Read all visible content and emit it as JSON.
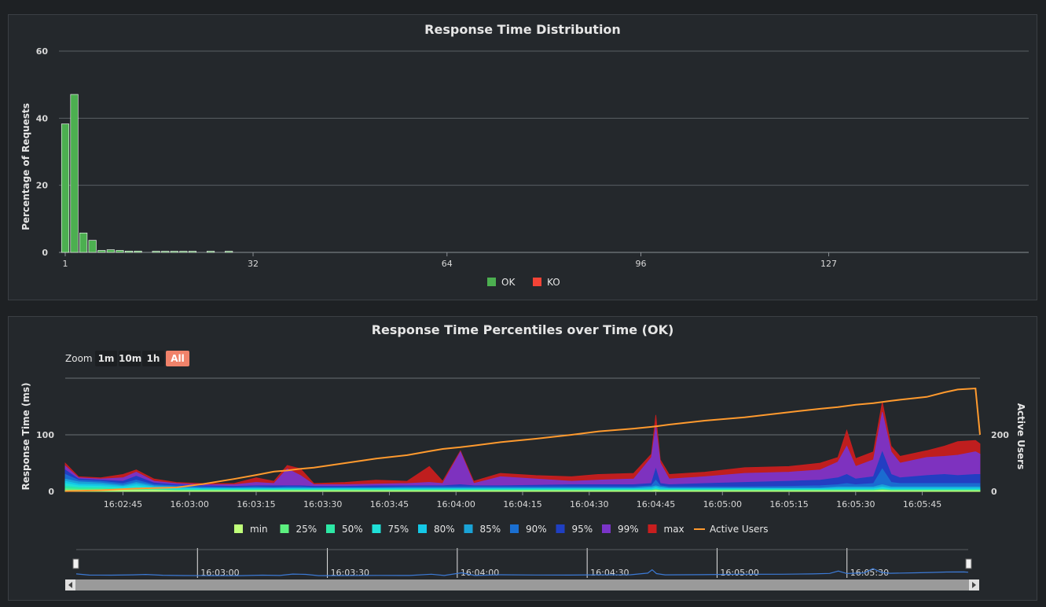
{
  "colors": {
    "ok": "#4caf50",
    "ko": "#f44336",
    "min": "#c0ff7a",
    "p25": "#5cf07f",
    "p50": "#2de8a5",
    "p75": "#1fe0d8",
    "p80": "#14c8e6",
    "p85": "#1aa3d6",
    "p90": "#1a6fd1",
    "p95": "#1f3fc2",
    "p99": "#7a34c8",
    "max": "#c81e1e",
    "users": "#ff9a2e"
  },
  "chart_data": [
    {
      "type": "bar",
      "title": "Response Time Distribution",
      "ylabel": "Percentage of Requests",
      "xlabel": "",
      "ylim": [
        0,
        60
      ],
      "xlim": [
        1,
        160
      ],
      "yticks": [
        "0",
        "20",
        "40",
        "60"
      ],
      "xticks": [
        "1",
        "32",
        "64",
        "96",
        "127"
      ],
      "xtick_values": [
        1,
        32,
        64,
        96,
        127
      ],
      "legend": [
        {
          "name": "OK",
          "color": "#4caf50"
        },
        {
          "name": "KO",
          "color": "#f44336"
        }
      ],
      "legend_position": "bottom",
      "bars": [
        {
          "x": 1,
          "v": 38.3
        },
        {
          "x": 2.5,
          "v": 47.1
        },
        {
          "x": 4,
          "v": 5.8
        },
        {
          "x": 5.5,
          "v": 3.6
        },
        {
          "x": 7,
          "v": 0.6
        },
        {
          "x": 8.5,
          "v": 0.8
        },
        {
          "x": 10,
          "v": 0.6
        },
        {
          "x": 11.5,
          "v": 0.4
        },
        {
          "x": 13,
          "v": 0.4
        },
        {
          "x": 16,
          "v": 0.3
        },
        {
          "x": 17.5,
          "v": 0.3
        },
        {
          "x": 19,
          "v": 0.3
        },
        {
          "x": 20.5,
          "v": 0.3
        },
        {
          "x": 22,
          "v": 0.2
        },
        {
          "x": 25,
          "v": 0.2
        },
        {
          "x": 28,
          "v": 0.2
        }
      ]
    },
    {
      "type": "area",
      "title": "Response Time Percentiles over Time (OK)",
      "ylabel": "Response Time (ms)",
      "y2label": "Active Users",
      "yticks": [
        "0",
        "100"
      ],
      "y2ticks": [
        "0",
        "200"
      ],
      "ylim": [
        0,
        200
      ],
      "y2lim": [
        0,
        400
      ],
      "xlim_seconds": [
        152,
        358
      ],
      "xtick_labels": [
        "16:02:45",
        "16:03:00",
        "16:03:15",
        "16:03:30",
        "16:03:45",
        "16:04:00",
        "16:04:15",
        "16:04:30",
        "16:04:45",
        "16:05:00",
        "16:05:15",
        "16:05:30",
        "16:05:45"
      ],
      "xtick_seconds": [
        165,
        180,
        195,
        210,
        225,
        240,
        255,
        270,
        285,
        300,
        315,
        330,
        345
      ],
      "legend_position": "bottom",
      "series_order": [
        "min",
        "25%",
        "50%",
        "75%",
        "80%",
        "85%",
        "90%",
        "95%",
        "99%",
        "max",
        "Active Users"
      ],
      "keypoints": [
        {
          "t": 152,
          "min": 2,
          "p25": 5,
          "p50": 9,
          "p75": 14,
          "p80": 18,
          "p85": 22,
          "p90": 30,
          "p95": 38,
          "p99": 45,
          "max": 50,
          "users": 1
        },
        {
          "t": 155,
          "min": 2,
          "p25": 4,
          "p50": 7,
          "p75": 10,
          "p80": 13,
          "p85": 17,
          "p90": 20,
          "p95": 22,
          "p99": 24,
          "max": 26,
          "users": 2
        },
        {
          "t": 160,
          "min": 2,
          "p25": 4,
          "p50": 6,
          "p75": 9,
          "p80": 12,
          "p85": 15,
          "p90": 18,
          "p95": 20,
          "p99": 22,
          "max": 24,
          "users": 4
        },
        {
          "t": 165,
          "min": 2,
          "p25": 3,
          "p50": 5,
          "p75": 7,
          "p80": 9,
          "p85": 11,
          "p90": 14,
          "p95": 18,
          "p99": 24,
          "max": 30,
          "users": 8
        },
        {
          "t": 168,
          "min": 2,
          "p25": 3,
          "p50": 6,
          "p75": 10,
          "p80": 13,
          "p85": 16,
          "p90": 20,
          "p95": 27,
          "p99": 34,
          "max": 38,
          "users": 10
        },
        {
          "t": 172,
          "min": 2,
          "p25": 3,
          "p50": 4,
          "p75": 6,
          "p80": 8,
          "p85": 10,
          "p90": 12,
          "p95": 15,
          "p99": 18,
          "max": 22,
          "users": 12
        },
        {
          "t": 177,
          "min": 1,
          "p25": 2,
          "p50": 3,
          "p75": 5,
          "p80": 6,
          "p85": 8,
          "p90": 10,
          "p95": 12,
          "p99": 14,
          "max": 16,
          "users": 14
        },
        {
          "t": 183,
          "min": 1,
          "p25": 2,
          "p50": 3,
          "p75": 4,
          "p80": 5,
          "p85": 6,
          "p90": 8,
          "p95": 10,
          "p99": 12,
          "max": 14,
          "users": 26
        },
        {
          "t": 190,
          "min": 1,
          "p25": 2,
          "p50": 3,
          "p75": 4,
          "p80": 5,
          "p85": 6,
          "p90": 7,
          "p95": 9,
          "p99": 12,
          "max": 14,
          "users": 44
        },
        {
          "t": 195,
          "min": 1,
          "p25": 2,
          "p50": 3,
          "p75": 4,
          "p80": 5,
          "p85": 6,
          "p90": 8,
          "p95": 10,
          "p99": 16,
          "max": 24,
          "users": 58
        },
        {
          "t": 199,
          "min": 1,
          "p25": 2,
          "p50": 3,
          "p75": 4,
          "p80": 5,
          "p85": 6,
          "p90": 7,
          "p95": 10,
          "p99": 14,
          "max": 18,
          "users": 70
        },
        {
          "t": 202,
          "min": 1,
          "p25": 2,
          "p50": 3,
          "p75": 4,
          "p80": 5,
          "p85": 6,
          "p90": 8,
          "p95": 10,
          "p99": 40,
          "max": 46,
          "users": 74
        },
        {
          "t": 205,
          "min": 1,
          "p25": 2,
          "p50": 3,
          "p75": 4,
          "p80": 5,
          "p85": 6,
          "p90": 8,
          "p95": 10,
          "p99": 28,
          "max": 40,
          "users": 80
        },
        {
          "t": 208,
          "min": 1,
          "p25": 2,
          "p50": 3,
          "p75": 4,
          "p80": 5,
          "p85": 6,
          "p90": 7,
          "p95": 9,
          "p99": 12,
          "max": 14,
          "users": 84
        },
        {
          "t": 215,
          "min": 1,
          "p25": 2,
          "p50": 3,
          "p75": 4,
          "p80": 5,
          "p85": 6,
          "p90": 7,
          "p95": 9,
          "p99": 12,
          "max": 16,
          "users": 100
        },
        {
          "t": 222,
          "min": 1,
          "p25": 2,
          "p50": 3,
          "p75": 4,
          "p80": 5,
          "p85": 6,
          "p90": 7,
          "p95": 10,
          "p99": 13,
          "max": 20,
          "users": 116
        },
        {
          "t": 229,
          "min": 1,
          "p25": 2,
          "p50": 3,
          "p75": 4,
          "p80": 5,
          "p85": 6,
          "p90": 8,
          "p95": 10,
          "p99": 14,
          "max": 18,
          "users": 128
        },
        {
          "t": 234,
          "min": 1,
          "p25": 2,
          "p50": 3,
          "p75": 4,
          "p80": 5,
          "p85": 6,
          "p90": 8,
          "p95": 10,
          "p99": 16,
          "max": 44,
          "users": 142
        },
        {
          "t": 237,
          "min": 1,
          "p25": 2,
          "p50": 3,
          "p75": 4,
          "p80": 5,
          "p85": 6,
          "p90": 8,
          "p95": 10,
          "p99": 14,
          "max": 18,
          "users": 150
        },
        {
          "t": 241,
          "min": 1,
          "p25": 2,
          "p50": 3,
          "p75": 4,
          "p80": 5,
          "p85": 6,
          "p90": 8,
          "p95": 12,
          "p99": 70,
          "max": 72,
          "users": 156
        },
        {
          "t": 244,
          "min": 1,
          "p25": 2,
          "p50": 3,
          "p75": 4,
          "p80": 5,
          "p85": 6,
          "p90": 8,
          "p95": 10,
          "p99": 14,
          "max": 18,
          "users": 162
        },
        {
          "t": 250,
          "min": 1,
          "p25": 2,
          "p50": 3,
          "p75": 4,
          "p80": 5,
          "p85": 6,
          "p90": 8,
          "p95": 10,
          "p99": 26,
          "max": 32,
          "users": 174
        },
        {
          "t": 258,
          "min": 1,
          "p25": 2,
          "p50": 3,
          "p75": 4,
          "p80": 5,
          "p85": 6,
          "p90": 8,
          "p95": 11,
          "p99": 22,
          "max": 28,
          "users": 186
        },
        {
          "t": 266,
          "min": 1,
          "p25": 2,
          "p50": 3,
          "p75": 4,
          "p80": 5,
          "p85": 6,
          "p90": 8,
          "p95": 12,
          "p99": 18,
          "max": 26,
          "users": 200
        },
        {
          "t": 272,
          "min": 1,
          "p25": 2,
          "p50": 3,
          "p75": 4,
          "p80": 5,
          "p85": 6,
          "p90": 8,
          "p95": 12,
          "p99": 20,
          "max": 30,
          "users": 212
        },
        {
          "t": 280,
          "min": 1,
          "p25": 2,
          "p50": 3,
          "p75": 4,
          "p80": 5,
          "p85": 6,
          "p90": 8,
          "p95": 12,
          "p99": 22,
          "max": 32,
          "users": 222
        },
        {
          "t": 284,
          "min": 1,
          "p25": 2,
          "p50": 3,
          "p75": 4,
          "p80": 6,
          "p85": 8,
          "p90": 10,
          "p95": 14,
          "p99": 60,
          "max": 66,
          "users": 228
        },
        {
          "t": 285,
          "min": 2,
          "p25": 3,
          "p50": 4,
          "p75": 6,
          "p80": 8,
          "p85": 10,
          "p90": 20,
          "p95": 40,
          "p99": 115,
          "max": 135,
          "users": 230
        },
        {
          "t": 286,
          "min": 1,
          "p25": 2,
          "p50": 3,
          "p75": 4,
          "p80": 6,
          "p85": 8,
          "p90": 10,
          "p95": 14,
          "p99": 50,
          "max": 56,
          "users": 232
        },
        {
          "t": 288,
          "min": 1,
          "p25": 2,
          "p50": 3,
          "p75": 4,
          "p80": 5,
          "p85": 6,
          "p90": 8,
          "p95": 12,
          "p99": 22,
          "max": 30,
          "users": 236
        },
        {
          "t": 296,
          "min": 1,
          "p25": 2,
          "p50": 3,
          "p75": 4,
          "p80": 5,
          "p85": 6,
          "p90": 8,
          "p95": 14,
          "p99": 26,
          "max": 34,
          "users": 250
        },
        {
          "t": 305,
          "min": 1,
          "p25": 2,
          "p50": 3,
          "p75": 4,
          "p80": 5,
          "p85": 6,
          "p90": 8,
          "p95": 16,
          "p99": 32,
          "max": 42,
          "users": 262
        },
        {
          "t": 315,
          "min": 1,
          "p25": 2,
          "p50": 3,
          "p75": 4,
          "p80": 5,
          "p85": 6,
          "p90": 9,
          "p95": 18,
          "p99": 34,
          "max": 44,
          "users": 280
        },
        {
          "t": 322,
          "min": 1,
          "p25": 2,
          "p50": 3,
          "p75": 4,
          "p80": 5,
          "p85": 6,
          "p90": 10,
          "p95": 20,
          "p99": 38,
          "max": 50,
          "users": 292
        },
        {
          "t": 326,
          "min": 1,
          "p25": 2,
          "p50": 3,
          "p75": 4,
          "p80": 6,
          "p85": 8,
          "p90": 12,
          "p95": 24,
          "p99": 52,
          "max": 60,
          "users": 298
        },
        {
          "t": 328,
          "min": 1,
          "p25": 2,
          "p50": 3,
          "p75": 4,
          "p80": 6,
          "p85": 8,
          "p90": 14,
          "p95": 30,
          "p99": 80,
          "max": 108,
          "users": 302
        },
        {
          "t": 330,
          "min": 1,
          "p25": 2,
          "p50": 3,
          "p75": 4,
          "p80": 6,
          "p85": 8,
          "p90": 12,
          "p95": 22,
          "p99": 44,
          "max": 58,
          "users": 306
        },
        {
          "t": 334,
          "min": 1,
          "p25": 2,
          "p50": 3,
          "p75": 4,
          "p80": 6,
          "p85": 8,
          "p90": 14,
          "p95": 26,
          "p99": 56,
          "max": 70,
          "users": 312
        },
        {
          "t": 336,
          "min": 2,
          "p25": 3,
          "p50": 4,
          "p75": 6,
          "p80": 8,
          "p85": 12,
          "p90": 40,
          "p95": 70,
          "p99": 140,
          "max": 158,
          "users": 316
        },
        {
          "t": 338,
          "min": 1,
          "p25": 2,
          "p50": 3,
          "p75": 4,
          "p80": 6,
          "p85": 8,
          "p90": 16,
          "p95": 30,
          "p99": 70,
          "max": 80,
          "users": 320
        },
        {
          "t": 340,
          "min": 1,
          "p25": 2,
          "p50": 3,
          "p75": 4,
          "p80": 6,
          "p85": 8,
          "p90": 14,
          "p95": 24,
          "p99": 50,
          "max": 62,
          "users": 324
        },
        {
          "t": 346,
          "min": 1,
          "p25": 2,
          "p50": 3,
          "p75": 4,
          "p80": 6,
          "p85": 8,
          "p90": 14,
          "p95": 28,
          "p99": 60,
          "max": 72,
          "users": 334
        },
        {
          "t": 350,
          "min": 1,
          "p25": 2,
          "p50": 3,
          "p75": 4,
          "p80": 6,
          "p85": 8,
          "p90": 14,
          "p95": 30,
          "p99": 62,
          "max": 80,
          "users": 350
        },
        {
          "t": 353,
          "min": 1,
          "p25": 2,
          "p50": 3,
          "p75": 4,
          "p80": 6,
          "p85": 8,
          "p90": 14,
          "p95": 28,
          "p99": 64,
          "max": 88,
          "users": 360
        },
        {
          "t": 357,
          "min": 1,
          "p25": 2,
          "p50": 3,
          "p75": 4,
          "p80": 6,
          "p85": 8,
          "p90": 14,
          "p95": 30,
          "p99": 70,
          "max": 90,
          "users": 364
        },
        {
          "t": 358,
          "min": 1,
          "p25": 2,
          "p50": 3,
          "p75": 4,
          "p80": 6,
          "p85": 8,
          "p90": 14,
          "p95": 30,
          "p99": 66,
          "max": 84,
          "users": 200
        }
      ]
    }
  ],
  "legend2": [
    {
      "name": "min",
      "key": "min"
    },
    {
      "name": "25%",
      "key": "p25"
    },
    {
      "name": "50%",
      "key": "p50"
    },
    {
      "name": "75%",
      "key": "p75"
    },
    {
      "name": "80%",
      "key": "p80"
    },
    {
      "name": "85%",
      "key": "p85"
    },
    {
      "name": "90%",
      "key": "p90"
    },
    {
      "name": "95%",
      "key": "p95"
    },
    {
      "name": "99%",
      "key": "p99"
    },
    {
      "name": "max",
      "key": "max"
    },
    {
      "name": "Active Users",
      "key": "users"
    }
  ],
  "zoom": {
    "label": "Zoom",
    "buttons": [
      "1m",
      "10m",
      "1h",
      "All"
    ],
    "active": "All"
  },
  "navigator": {
    "labels": [
      "16:03:00",
      "16:03:30",
      "16:04:00",
      "16:04:30",
      "16:05:00",
      "16:05:30"
    ],
    "seconds": [
      180,
      210,
      240,
      270,
      300,
      330
    ]
  }
}
